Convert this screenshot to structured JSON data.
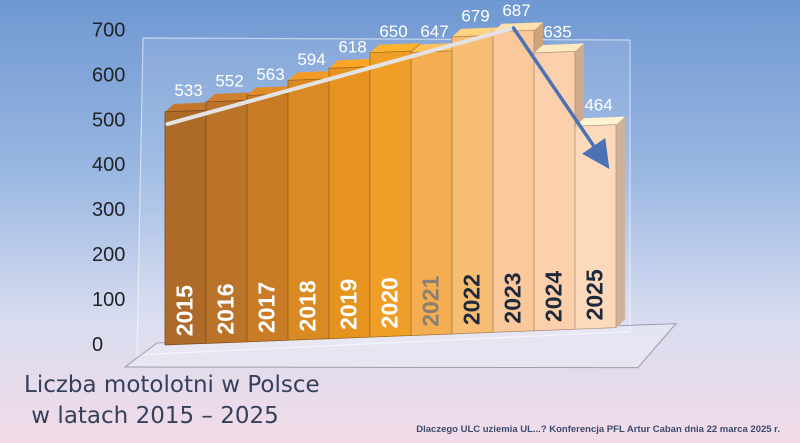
{
  "chart_data": {
    "type": "bar",
    "categories": [
      "2015",
      "2016",
      "2017",
      "2018",
      "2019",
      "2020",
      "2021",
      "2022",
      "2023",
      "2024",
      "2025"
    ],
    "values": [
      533,
      552,
      563,
      594,
      618,
      650,
      647,
      679,
      687,
      635,
      464
    ],
    "y_ticks": [
      "0",
      "100",
      "200",
      "300",
      "400",
      "500",
      "600",
      "700"
    ],
    "ylim": [
      0,
      700
    ],
    "data_labels": [
      "533",
      "552",
      "563",
      "594",
      "618",
      "650",
      "647",
      "679",
      "687",
      "635",
      "464"
    ],
    "grid": false,
    "legend": "none",
    "trend_up": {
      "from": "2015",
      "to": "2023",
      "color": "#e3e3e3"
    },
    "trend_down": {
      "from": "2023",
      "to": "2025",
      "color": "#4a72b5"
    },
    "colors": [
      "#ad6a28",
      "#bb7229",
      "#c97c25",
      "#d98a22",
      "#e6931f",
      "#ef9f28",
      "#f4ad51",
      "#f7bd72",
      "#fac89a",
      "#fbd0ab",
      "#fcd9bb"
    ],
    "year_label_colors": [
      "#ffffff",
      "#ffffff",
      "#ffffff",
      "#ffffff",
      "#ffffff",
      "#ffffff",
      "#8a7f73",
      "#1e2a3b",
      "#1e2a3b",
      "#1e2a3b",
      "#1e2a3b"
    ],
    "value_label_color": "#ffffff"
  },
  "title": {
    "line1": "Liczba motolotni w Polsce",
    "line2": " w latach 2015 – 2025"
  },
  "footnote": "Dlaczego ULC uziemia UL...? Konferencja PFL Artur Caban dnia 22 marca 2025 r."
}
